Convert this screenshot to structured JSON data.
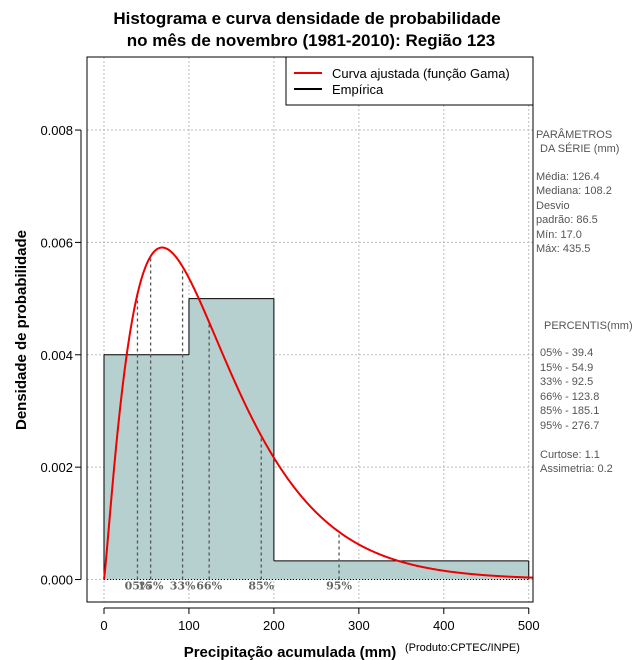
{
  "title_line1": "Histograma e curva densidade de probabilidade",
  "title_line2": "no mês de novembro (1981-2010): Região 123",
  "credit": "(Produto:CPTEC/INPE)",
  "colors": {
    "bar_fill": "#b6cfcf",
    "curve": "#ee0000",
    "grid": "#bbbbbb",
    "percentile": "#555555"
  },
  "legend": {
    "curve_label": "Curva ajustada (função Gama)",
    "empirical_label": "Empírica"
  },
  "params": {
    "header1": "PARÂMETROS",
    "header2": "DA SÉRIE (mm)",
    "media": "Média:  126.4",
    "mediana": "Mediana:  108.2",
    "desvio1": "Desvio",
    "desvio2": "padrão:  86.5",
    "min": "Mín:  17.0",
    "max": "Máx:  435.5"
  },
  "percentis": {
    "header": "PERCENTIS(mm)",
    "p05": "05% -   39.4",
    "p15": "15% -   54.9",
    "p33": "33% -   92.5",
    "p66": "66% -   123.8",
    "p85": "85% -   185.1",
    "p95": "95% -   276.7",
    "curtose": "Curtose:  1.1",
    "assimetria": "Assimetria:  0.2"
  },
  "chart_data": {
    "type": "bar",
    "title": "Histograma e curva densidade de probabilidade no mês de novembro (1981-2010): Região 123",
    "xlabel": "Precipitação acumulada (mm)",
    "ylabel": "Densidade de probabilidade",
    "xlim": [
      -20,
      505
    ],
    "ylim": [
      -0.0004,
      0.0093
    ],
    "x_ticks": [
      0,
      100,
      200,
      300,
      400,
      500
    ],
    "x_tick_labels": [
      "0",
      "100",
      "200",
      "300",
      "400",
      "500"
    ],
    "y_ticks": [
      0.0,
      0.002,
      0.004,
      0.006,
      0.008
    ],
    "y_tick_labels": [
      "0.000",
      "0.002",
      "0.004",
      "0.006",
      "0.008"
    ],
    "bins": [
      {
        "from": 0,
        "to": 100,
        "density": 0.004
      },
      {
        "from": 100,
        "to": 200,
        "density": 0.005
      },
      {
        "from": 200,
        "to": 500,
        "density": 0.000333
      }
    ],
    "gamma_curve": {
      "name": "Curva ajustada (função Gama)",
      "shape": 2.18,
      "scale": 58.0,
      "x_range": [
        0,
        505
      ]
    },
    "percentiles": [
      {
        "label": "05%",
        "x": 39.4
      },
      {
        "label": "15%",
        "x": 54.9
      },
      {
        "label": "33%",
        "x": 92.5
      },
      {
        "label": "66%",
        "x": 123.8
      },
      {
        "label": "85%",
        "x": 185.1
      },
      {
        "label": "95%",
        "x": 276.7
      }
    ],
    "legend_position": "top-right",
    "grid": true
  }
}
